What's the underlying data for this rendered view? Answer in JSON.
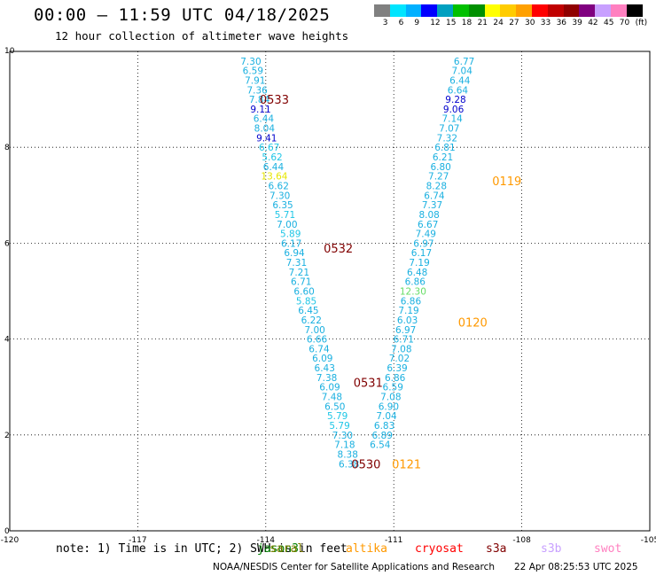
{
  "header": {
    "title": "00:00 – 11:59 UTC 04/18/2025",
    "subtitle": "12 hour collection of altimeter wave heights"
  },
  "color_scale": {
    "swatches": [
      "#808080",
      "#00e5ff",
      "#00b0ff",
      "#0000ff",
      "#00a0c0",
      "#00c000",
      "#009000",
      "#ffff00",
      "#ffcc00",
      "#ffa000",
      "#ff0000",
      "#c00000",
      "#900000",
      "#800080",
      "#c8a0ff",
      "#ff80c0",
      "#000000"
    ],
    "labels": [
      "3",
      "6",
      "9",
      "12",
      "15",
      "18",
      "21",
      "24",
      "27",
      "30",
      "33",
      "36",
      "39",
      "42",
      "45",
      "70",
      "(ft)"
    ]
  },
  "footer": {
    "note": "note: 1) Time is in UTC; 2) SWH is in feet",
    "credit": "NOAA/NESDIS Center for Satellite Applications and Research",
    "timestamp": "22 Apr 08:25:53 UTC 2025"
  },
  "satellites": [
    {
      "name": "jason3",
      "color": "#008000"
    },
    {
      "name": "saral",
      "color": "#808000"
    },
    {
      "name": "altika",
      "color": "#ff9900"
    },
    {
      "name": "cryosat",
      "color": "#ff0000"
    },
    {
      "name": "s3a",
      "color": "#800000"
    },
    {
      "name": "s3b",
      "color": "#c8a0ff"
    },
    {
      "name": "swot",
      "color": "#ff80c0"
    }
  ],
  "chart_data": {
    "type": "scatter",
    "title": "00:00 – 11:59 UTC 04/18/2025",
    "subtitle": "12 hour collection of altimeter wave heights",
    "xlim": [
      -120,
      -105
    ],
    "ylim": [
      0,
      10
    ],
    "x_ticks": [
      -120,
      -117,
      -114,
      -111,
      -108,
      -105
    ],
    "x_tick_labels": [
      "-120",
      "-117",
      "-114",
      "-111",
      "-108",
      "-105"
    ],
    "y_ticks": [
      0,
      2,
      4,
      6,
      8,
      10
    ],
    "grid": true,
    "point_colors": {
      "c9": "#1ab0e0",
      "c6": "#1ec6e6",
      "c12": "#0000cc",
      "c24": "#e6e600",
      "c18": "#66dd66"
    },
    "series": [
      {
        "points": [
          {
            "x": -114.35,
            "y": 9.8,
            "v": "7.30",
            "c": "c9"
          },
          {
            "x": -114.3,
            "y": 9.6,
            "v": "6.59",
            "c": "c9"
          },
          {
            "x": -114.25,
            "y": 9.4,
            "v": "7.91",
            "c": "c9"
          },
          {
            "x": -114.2,
            "y": 9.2,
            "v": "7.36",
            "c": "c9"
          },
          {
            "x": -114.15,
            "y": 9.0,
            "v": "7.84",
            "c": "c9"
          },
          {
            "x": -114.12,
            "y": 8.8,
            "v": "9.11",
            "c": "c12"
          },
          {
            "x": -114.05,
            "y": 8.6,
            "v": "6.44",
            "c": "c9"
          },
          {
            "x": -114.03,
            "y": 8.4,
            "v": "8.04",
            "c": "c9"
          },
          {
            "x": -113.98,
            "y": 8.2,
            "v": "9.41",
            "c": "c12"
          },
          {
            "x": -113.92,
            "y": 8.0,
            "v": "6.67",
            "c": "c6"
          },
          {
            "x": -113.85,
            "y": 7.8,
            "v": "5.62",
            "c": "c6"
          },
          {
            "x": -113.82,
            "y": 7.6,
            "v": "6.44",
            "c": "c9"
          },
          {
            "x": -113.8,
            "y": 7.4,
            "v": "13.64",
            "c": "c24"
          },
          {
            "x": -113.7,
            "y": 7.2,
            "v": "6.62",
            "c": "c9"
          },
          {
            "x": -113.67,
            "y": 7.0,
            "v": "7.30",
            "c": "c9"
          },
          {
            "x": -113.6,
            "y": 6.8,
            "v": "6.35",
            "c": "c9"
          },
          {
            "x": -113.55,
            "y": 6.6,
            "v": "5.71",
            "c": "c6"
          },
          {
            "x": -113.5,
            "y": 6.4,
            "v": "7.00",
            "c": "c9"
          },
          {
            "x": -113.42,
            "y": 6.2,
            "v": "5.89",
            "c": "c6"
          },
          {
            "x": -113.4,
            "y": 6.0,
            "v": "6.17",
            "c": "c9"
          },
          {
            "x": -113.33,
            "y": 5.8,
            "v": "6.94",
            "c": "c9"
          },
          {
            "x": -113.28,
            "y": 5.6,
            "v": "7.31",
            "c": "c9"
          },
          {
            "x": -113.22,
            "y": 5.4,
            "v": "7.21",
            "c": "c9"
          },
          {
            "x": -113.17,
            "y": 5.2,
            "v": "6.71",
            "c": "c9"
          },
          {
            "x": -113.1,
            "y": 5.0,
            "v": "6.60",
            "c": "c9"
          },
          {
            "x": -113.05,
            "y": 4.8,
            "v": "5.85",
            "c": "c6"
          },
          {
            "x": -113.0,
            "y": 4.6,
            "v": "6.45",
            "c": "c9"
          },
          {
            "x": -112.93,
            "y": 4.4,
            "v": "6.22",
            "c": "c9"
          },
          {
            "x": -112.85,
            "y": 4.2,
            "v": "7.00",
            "c": "c9"
          },
          {
            "x": -112.8,
            "y": 4.0,
            "v": "6.66",
            "c": "c9"
          },
          {
            "x": -112.75,
            "y": 3.8,
            "v": "6.74",
            "c": "c9"
          },
          {
            "x": -112.67,
            "y": 3.6,
            "v": "6.09",
            "c": "c9"
          },
          {
            "x": -112.62,
            "y": 3.4,
            "v": "6.43",
            "c": "c9"
          },
          {
            "x": -112.57,
            "y": 3.2,
            "v": "7.38",
            "c": "c9"
          },
          {
            "x": -112.5,
            "y": 3.0,
            "v": "6.09",
            "c": "c9"
          },
          {
            "x": -112.45,
            "y": 2.8,
            "v": "7.48",
            "c": "c9"
          },
          {
            "x": -112.38,
            "y": 2.6,
            "v": "6.50",
            "c": "c9"
          },
          {
            "x": -112.32,
            "y": 2.4,
            "v": "5.79",
            "c": "c6"
          },
          {
            "x": -112.27,
            "y": 2.2,
            "v": "5.79",
            "c": "c6"
          },
          {
            "x": -112.2,
            "y": 2.0,
            "v": "7.30",
            "c": "c9"
          },
          {
            "x": -112.15,
            "y": 1.8,
            "v": "7.18",
            "c": "c9"
          },
          {
            "x": -112.08,
            "y": 1.6,
            "v": "8.38",
            "c": "c9"
          },
          {
            "x": -112.05,
            "y": 1.4,
            "v": "6.38",
            "c": "c9"
          }
        ]
      },
      {
        "points": [
          {
            "x": -109.35,
            "y": 9.8,
            "v": "6.77",
            "c": "c9"
          },
          {
            "x": -109.4,
            "y": 9.6,
            "v": "7.04",
            "c": "c9"
          },
          {
            "x": -109.45,
            "y": 9.4,
            "v": "6.44",
            "c": "c9"
          },
          {
            "x": -109.5,
            "y": 9.2,
            "v": "6.64",
            "c": "c9"
          },
          {
            "x": -109.55,
            "y": 9.0,
            "v": "9.28",
            "c": "c12"
          },
          {
            "x": -109.6,
            "y": 8.8,
            "v": "9.06",
            "c": "c12"
          },
          {
            "x": -109.63,
            "y": 8.6,
            "v": "7.14",
            "c": "c9"
          },
          {
            "x": -109.7,
            "y": 8.4,
            "v": "7.07",
            "c": "c9"
          },
          {
            "x": -109.75,
            "y": 8.2,
            "v": "7.32",
            "c": "c9"
          },
          {
            "x": -109.8,
            "y": 8.0,
            "v": "6.81",
            "c": "c9"
          },
          {
            "x": -109.85,
            "y": 7.8,
            "v": "6.21",
            "c": "c9"
          },
          {
            "x": -109.9,
            "y": 7.6,
            "v": "6.80",
            "c": "c9"
          },
          {
            "x": -109.95,
            "y": 7.4,
            "v": "7.27",
            "c": "c9"
          },
          {
            "x": -110.0,
            "y": 7.2,
            "v": "8.28",
            "c": "c9"
          },
          {
            "x": -110.05,
            "y": 7.0,
            "v": "6.74",
            "c": "c9"
          },
          {
            "x": -110.1,
            "y": 6.8,
            "v": "7.37",
            "c": "c9"
          },
          {
            "x": -110.17,
            "y": 6.6,
            "v": "8.08",
            "c": "c9"
          },
          {
            "x": -110.2,
            "y": 6.4,
            "v": "6.67",
            "c": "c9"
          },
          {
            "x": -110.25,
            "y": 6.2,
            "v": "7.49",
            "c": "c9"
          },
          {
            "x": -110.3,
            "y": 6.0,
            "v": "6.97",
            "c": "c9"
          },
          {
            "x": -110.35,
            "y": 5.8,
            "v": "6.17",
            "c": "c9"
          },
          {
            "x": -110.4,
            "y": 5.6,
            "v": "7.19",
            "c": "c9"
          },
          {
            "x": -110.45,
            "y": 5.4,
            "v": "6.48",
            "c": "c9"
          },
          {
            "x": -110.5,
            "y": 5.2,
            "v": "6.86",
            "c": "c9"
          },
          {
            "x": -110.55,
            "y": 5.0,
            "v": "12.30",
            "c": "c18"
          },
          {
            "x": -110.6,
            "y": 4.8,
            "v": "6.86",
            "c": "c9"
          },
          {
            "x": -110.65,
            "y": 4.6,
            "v": "7.19",
            "c": "c9"
          },
          {
            "x": -110.68,
            "y": 4.4,
            "v": "6.03",
            "c": "c9"
          },
          {
            "x": -110.72,
            "y": 4.2,
            "v": "6.97",
            "c": "c9"
          },
          {
            "x": -110.77,
            "y": 4.0,
            "v": "6.71",
            "c": "c9"
          },
          {
            "x": -110.82,
            "y": 3.8,
            "v": "7.08",
            "c": "c9"
          },
          {
            "x": -110.87,
            "y": 3.6,
            "v": "7.02",
            "c": "c9"
          },
          {
            "x": -110.92,
            "y": 3.4,
            "v": "6.39",
            "c": "c9"
          },
          {
            "x": -110.97,
            "y": 3.2,
            "v": "6.86",
            "c": "c9"
          },
          {
            "x": -111.02,
            "y": 3.0,
            "v": "6.59",
            "c": "c9"
          },
          {
            "x": -111.07,
            "y": 2.8,
            "v": "7.08",
            "c": "c9"
          },
          {
            "x": -111.12,
            "y": 2.6,
            "v": "6.90",
            "c": "c9"
          },
          {
            "x": -111.17,
            "y": 2.4,
            "v": "7.04",
            "c": "c9"
          },
          {
            "x": -111.22,
            "y": 2.2,
            "v": "6.83",
            "c": "c9"
          },
          {
            "x": -111.27,
            "y": 2.0,
            "v": "6.89",
            "c": "c9"
          },
          {
            "x": -111.32,
            "y": 1.8,
            "v": "6.54",
            "c": "c9"
          }
        ]
      }
    ],
    "annotations": [
      {
        "text": "0533",
        "x": -113.8,
        "y": 9.0,
        "color": "#800000"
      },
      {
        "text": "0532",
        "x": -112.3,
        "y": 5.9,
        "color": "#800000"
      },
      {
        "text": "0531",
        "x": -111.6,
        "y": 3.1,
        "color": "#800000"
      },
      {
        "text": "0530",
        "x": -111.65,
        "y": 1.4,
        "color": "#800000"
      },
      {
        "text": "0119",
        "x": -108.35,
        "y": 7.3,
        "color": "#ff9900"
      },
      {
        "text": "0120",
        "x": -109.15,
        "y": 4.35,
        "color": "#ff9900"
      },
      {
        "text": "0121",
        "x": -110.7,
        "y": 1.4,
        "color": "#ff9900"
      }
    ]
  }
}
